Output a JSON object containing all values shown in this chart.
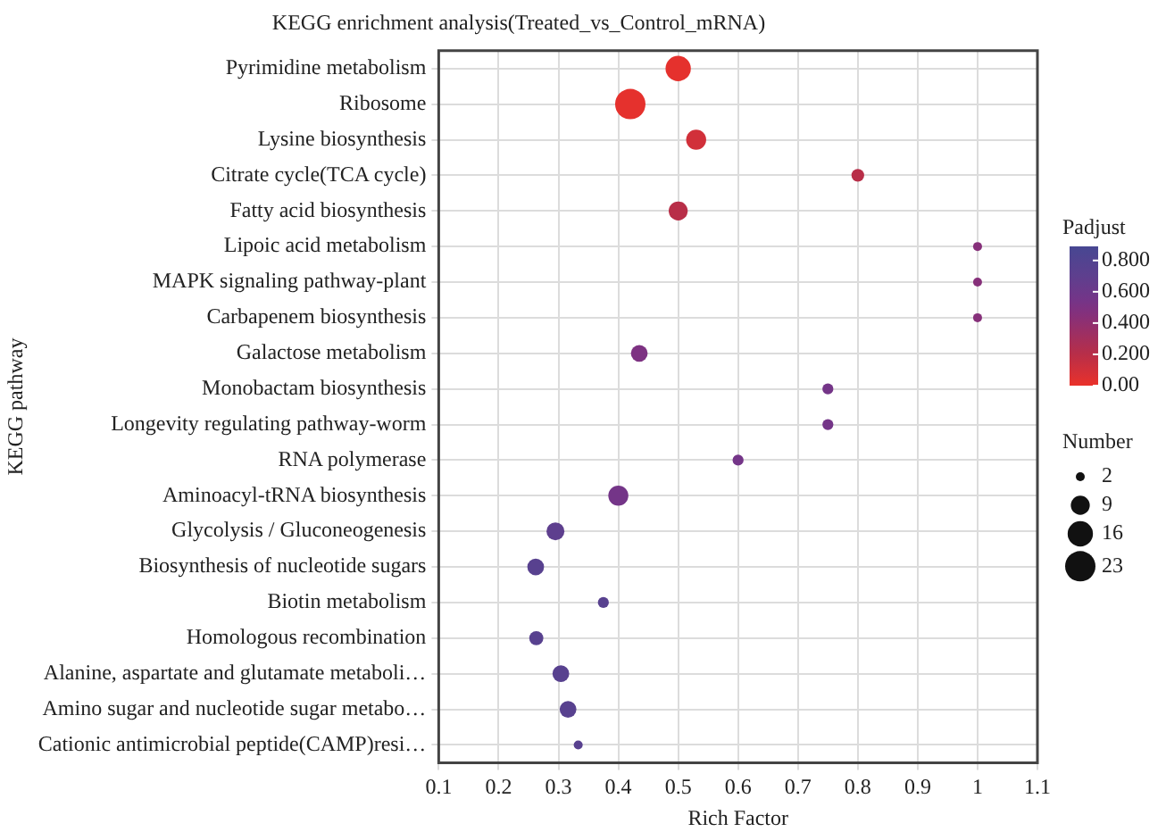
{
  "chart_data": {
    "type": "bubble",
    "orientation": "horizontal",
    "title": "KEGG enrichment analysis(Treated_vs_Control_mRNA)",
    "xlabel": "Rich Factor",
    "ylabel": "KEGG pathway",
    "clabel": "Padjust",
    "legend_title": "Number",
    "categories": [
      "Pyrimidine metabolism",
      "Ribosome",
      "Lysine biosynthesis",
      "Citrate cycle(TCA cycle)",
      "Fatty acid biosynthesis",
      "Lipoic acid metabolism",
      "MAPK signaling pathway-plant",
      "Carbapenem biosynthesis",
      "Galactose metabolism",
      "Monobactam biosynthesis",
      "Longevity regulating pathway-worm",
      "RNA polymerase",
      "Aminoacyl-tRNA biosynthesis",
      "Glycolysis / Gluconeogenesis",
      "Biosynthesis of nucleotide sugars",
      "Biotin metabolism",
      "Homologous recombination",
      "Alanine, aspartate and glutamate metaboli…",
      "Amino sugar and nucleotide sugar metabo…",
      "Cationic antimicrobial peptide(CAMP)resi…"
    ],
    "values": [
      0.5,
      0.42,
      0.53,
      0.8,
      0.5,
      1,
      1,
      1,
      0.435,
      0.75,
      0.75,
      0.6,
      0.4,
      0.295,
      0.262,
      0.375,
      0.263,
      0.304,
      0.316,
      0.333
    ],
    "sizes": [
      16,
      23,
      10,
      4,
      9,
      2,
      2,
      2,
      7,
      3,
      3,
      3,
      10,
      8,
      7,
      3,
      5,
      7,
      7,
      2
    ],
    "size_legend": [
      2,
      9,
      16,
      23
    ],
    "cvalues": [
      0.02,
      0.02,
      0.1,
      0.2,
      0.2,
      0.45,
      0.45,
      0.45,
      0.5,
      0.55,
      0.55,
      0.55,
      0.55,
      0.7,
      0.75,
      0.75,
      0.75,
      0.75,
      0.75,
      0.75
    ],
    "colors": [
      "#e5312d",
      "#e5312d",
      "#d1303a",
      "#b82e48",
      "#b82e48",
      "#86307a",
      "#86307a",
      "#86307a",
      "#7d3282",
      "#743588",
      "#743588",
      "#743588",
      "#743588",
      "#5e3f8e",
      "#58418f",
      "#58418f",
      "#58418f",
      "#58418f",
      "#58418f",
      "#58418f"
    ],
    "clim": [
      0,
      0.89
    ],
    "cticks": [
      {
        "value": 0,
        "label": "0.00"
      },
      {
        "value": 0.2,
        "label": "0.200"
      },
      {
        "value": 0.4,
        "label": "0.400"
      },
      {
        "value": 0.6,
        "label": "0.600"
      },
      {
        "value": 0.8,
        "label": "0.800"
      }
    ],
    "xlim": [
      0.1,
      1.1
    ],
    "xticks": [
      0.1,
      0.2,
      0.3,
      0.4,
      0.5,
      0.6,
      0.7,
      0.8,
      0.9,
      1,
      1.1
    ],
    "grid": true
  }
}
